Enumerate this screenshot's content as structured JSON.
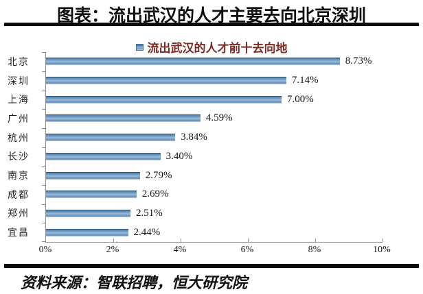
{
  "title": "图表：流出武汉的人才主要去向北京深圳",
  "source": "资料来源：智联招聘，恒大研究院",
  "colors": {
    "bar_dark": "#2c5679",
    "bar_mid": "#5d8ab8",
    "bar_highlight": "#9dbbd7",
    "bar_light_edge": "#c4d8e8",
    "legend_text": "#7c2a24",
    "axis": "#8f8f8f",
    "divider": "#0d0d0d",
    "background": "#ffffff"
  },
  "chart_data": {
    "type": "bar",
    "orientation": "horizontal",
    "title": "流出武汉的人才前十去向地",
    "legend": "流出武汉的人才前十去向地",
    "legend_position": "top",
    "grid": false,
    "categories": [
      "北京",
      "深圳",
      "上海",
      "广州",
      "杭州",
      "长沙",
      "南京",
      "成都",
      "郑州",
      "宜昌"
    ],
    "values": [
      8.73,
      7.14,
      7.0,
      4.59,
      3.84,
      3.4,
      2.79,
      2.69,
      2.51,
      2.44
    ],
    "value_labels": [
      "8.73%",
      "7.14%",
      "7.00%",
      "4.59%",
      "3.84%",
      "3.40%",
      "2.79%",
      "2.69%",
      "2.51%",
      "2.44%"
    ],
    "xlim": [
      0,
      10
    ],
    "x_tick_values": [
      0,
      2,
      4,
      6,
      8,
      10
    ],
    "x_tick_labels": [
      "0%",
      "2%",
      "4%",
      "6%",
      "8%",
      "10%"
    ],
    "xlabel": "",
    "ylabel": ""
  }
}
